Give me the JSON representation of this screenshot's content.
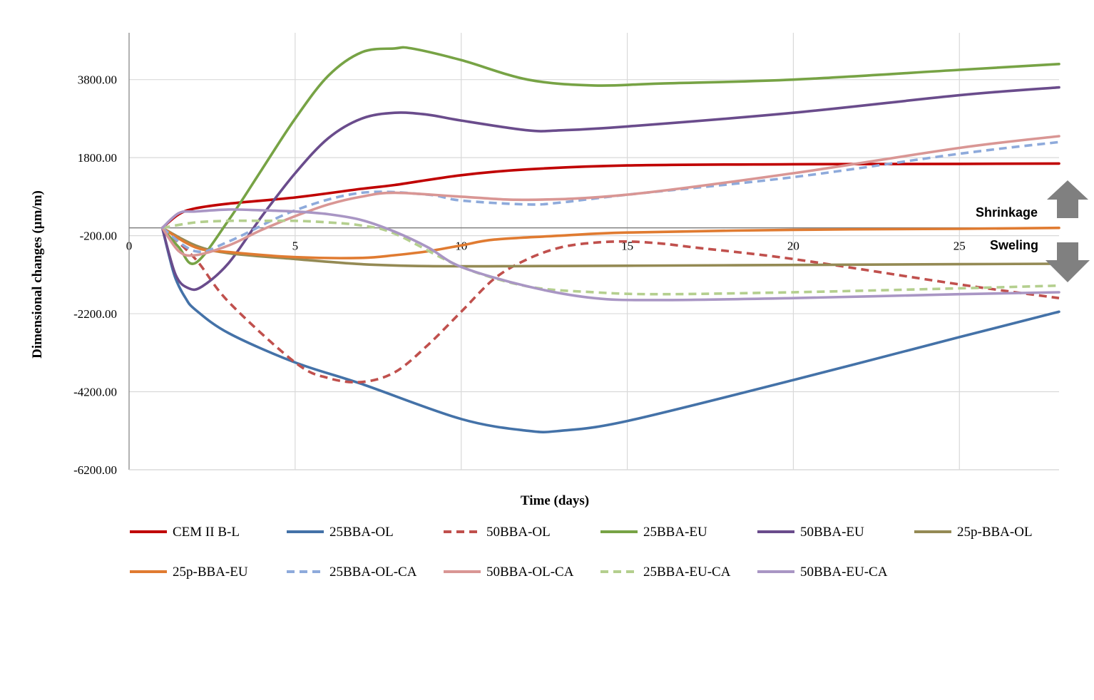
{
  "chart_data": {
    "type": "line",
    "title": "",
    "xlabel": "Time (days)",
    "ylabel": "Dimensional changes (µm/m)",
    "xlim": [
      0,
      28
    ],
    "ylim": [
      -6200,
      5000
    ],
    "x_ticks": [
      0,
      5,
      10,
      15,
      20,
      25
    ],
    "y_ticks": [
      3800,
      1800,
      -200,
      -2200,
      -4200,
      -6200
    ],
    "y_tick_labels": [
      "3800.00",
      "1800.00",
      "-200.00",
      "-2200.00",
      "-4200.00",
      "-6200.00"
    ],
    "grid": true,
    "legend_position": "bottom",
    "annotations": {
      "shrinkage": "Shrinkage",
      "swelling": "Sweling"
    },
    "series": [
      {
        "name": "CEM II B-L",
        "color": "#c00000",
        "dash": false,
        "x": [
          1,
          1.5,
          2,
          3,
          5,
          7,
          8,
          10,
          12,
          15,
          20,
          25,
          28
        ],
        "y": [
          0,
          350,
          500,
          620,
          780,
          1000,
          1100,
          1350,
          1500,
          1600,
          1630,
          1640,
          1650
        ]
      },
      {
        "name": "25BBA-OL",
        "color": "#4472a8",
        "dash": false,
        "x": [
          1,
          1.2,
          1.4,
          1.7,
          2,
          3,
          5,
          7,
          10,
          12,
          13,
          15,
          20,
          25,
          28
        ],
        "y": [
          0,
          -700,
          -1300,
          -1800,
          -2100,
          -2700,
          -3450,
          -4000,
          -4900,
          -5200,
          -5200,
          -4950,
          -3900,
          -2800,
          -2150
        ]
      },
      {
        "name": "50BBA-OL",
        "color": "#c0504d",
        "dash": true,
        "x": [
          1,
          2,
          3,
          5,
          6,
          7,
          8,
          9,
          10,
          11,
          12,
          13,
          14,
          15,
          16,
          17,
          20,
          25,
          28
        ],
        "y": [
          0,
          -800,
          -1900,
          -3450,
          -3850,
          -3950,
          -3700,
          -3000,
          -2150,
          -1300,
          -800,
          -500,
          -380,
          -350,
          -400,
          -500,
          -800,
          -1450,
          -1800
        ]
      },
      {
        "name": "25BBA-EU",
        "color": "#77a345",
        "dash": false,
        "x": [
          1,
          1.5,
          2,
          3,
          4,
          5,
          6,
          7,
          8,
          8.5,
          10,
          12,
          14,
          16,
          20,
          25,
          28
        ],
        "y": [
          0,
          -500,
          -900,
          200,
          1500,
          2800,
          3900,
          4500,
          4600,
          4600,
          4300,
          3800,
          3650,
          3700,
          3800,
          4050,
          4200
        ]
      },
      {
        "name": "50BBA-EU",
        "color": "#6a4c8c",
        "dash": false,
        "x": [
          1,
          1.4,
          1.8,
          2.2,
          3,
          4,
          5,
          6,
          7,
          8,
          9,
          10,
          12,
          13,
          15,
          20,
          25,
          28
        ],
        "y": [
          0,
          -1200,
          -1550,
          -1500,
          -900,
          300,
          1400,
          2300,
          2800,
          2950,
          2900,
          2750,
          2500,
          2500,
          2600,
          2950,
          3400,
          3600
        ]
      },
      {
        "name": "25p-BBA-OL",
        "color": "#948a54",
        "dash": false,
        "x": [
          1,
          2,
          3,
          5,
          7,
          9,
          12,
          15,
          20,
          25,
          28
        ],
        "y": [
          0,
          -450,
          -650,
          -800,
          -930,
          -980,
          -980,
          -970,
          -950,
          -930,
          -920
        ]
      },
      {
        "name": "25p-BBA-EU",
        "color": "#e07b31",
        "dash": false,
        "x": [
          1,
          2,
          3,
          5,
          7,
          8,
          9,
          10,
          11,
          13,
          15,
          20,
          25,
          28
        ],
        "y": [
          0,
          -500,
          -620,
          -750,
          -770,
          -700,
          -600,
          -450,
          -300,
          -200,
          -120,
          -50,
          -25,
          0
        ]
      },
      {
        "name": "25BBA-OL-CA",
        "color": "#8eaadb",
        "dash": true,
        "x": [
          1,
          2,
          3,
          5,
          7,
          9,
          10,
          12,
          13,
          15,
          20,
          25,
          28
        ],
        "y": [
          0,
          -600,
          -350,
          450,
          900,
          850,
          700,
          600,
          650,
          850,
          1300,
          1900,
          2200
        ]
      },
      {
        "name": "50BBA-OL-CA",
        "color": "#d99694",
        "dash": false,
        "x": [
          1,
          1.5,
          2,
          3,
          4,
          5,
          6,
          7,
          8,
          10,
          12,
          15,
          20,
          25,
          28
        ],
        "y": [
          0,
          -600,
          -700,
          -450,
          -50,
          300,
          600,
          800,
          900,
          800,
          720,
          850,
          1400,
          2050,
          2350
        ]
      },
      {
        "name": "25BBA-EU-CA",
        "color": "#b4cf8e",
        "dash": true,
        "x": [
          1,
          2,
          3,
          4,
          5,
          6,
          7,
          8,
          10,
          12,
          14,
          16,
          20,
          25,
          28
        ],
        "y": [
          0,
          140,
          180,
          180,
          180,
          140,
          60,
          -150,
          -1000,
          -1500,
          -1650,
          -1700,
          -1650,
          -1550,
          -1480
        ]
      },
      {
        "name": "50BBA-EU-CA",
        "color": "#a996c4",
        "dash": false,
        "x": [
          1,
          1.5,
          2,
          3,
          4,
          5,
          6,
          7,
          8,
          9,
          10,
          12,
          14,
          16,
          20,
          25,
          28
        ],
        "y": [
          0,
          380,
          420,
          470,
          450,
          420,
          350,
          200,
          -100,
          -500,
          -1000,
          -1500,
          -1800,
          -1850,
          -1800,
          -1700,
          -1650
        ]
      }
    ]
  }
}
